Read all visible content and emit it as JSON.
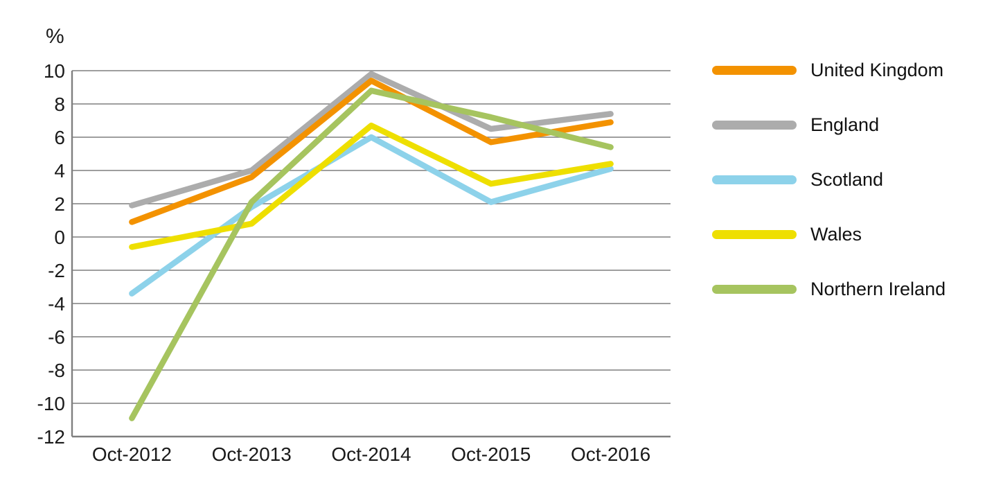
{
  "chart_data": {
    "type": "line",
    "title": "",
    "ylabel": "%",
    "xlabel": "",
    "categories": [
      "Oct-2012",
      "Oct-2013",
      "Oct-2014",
      "Oct-2015",
      "Oct-2016"
    ],
    "series": [
      {
        "name": "United Kingdom",
        "color": "#F39200",
        "values": [
          0.9,
          3.6,
          9.4,
          5.7,
          6.9
        ]
      },
      {
        "name": "England",
        "color": "#ACACAC",
        "values": [
          1.9,
          4.0,
          9.8,
          6.5,
          7.4
        ]
      },
      {
        "name": "Scotland",
        "color": "#8DD2EA",
        "values": [
          -3.4,
          1.8,
          6.0,
          2.1,
          4.1
        ]
      },
      {
        "name": "Wales",
        "color": "#EEDF00",
        "values": [
          -0.6,
          0.8,
          6.7,
          3.2,
          4.4
        ]
      },
      {
        "name": "Northern Ireland",
        "color": "#A6C45F",
        "values": [
          -10.9,
          2.1,
          8.8,
          7.2,
          5.4
        ]
      }
    ],
    "ylim": [
      -12,
      10
    ],
    "ytick_step": 2,
    "yticks": [
      "10",
      "8",
      "6",
      "4",
      "2",
      "0",
      "-2",
      "-4",
      "-6",
      "-8",
      "-10",
      "-12"
    ],
    "grid": "horizontal",
    "legend_position": "right",
    "axis_color": "#7F7F7F",
    "text_color": "#1A1A1A",
    "line_width": 8.5
  }
}
